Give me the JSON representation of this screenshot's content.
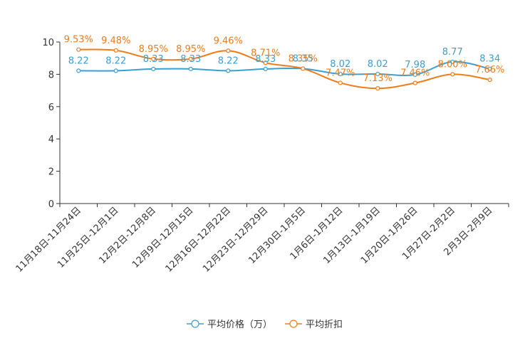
{
  "chart_data": {
    "type": "line",
    "title": "",
    "xlabel": "",
    "ylabel": "",
    "ylim": [
      0,
      10
    ],
    "yticks": [
      0,
      2,
      4,
      6,
      8,
      10
    ],
    "grid": false,
    "legend_position": "bottom-center",
    "categories": [
      "11月18日-11月24日",
      "11月25日-12月1日",
      "12月2日-12月8日",
      "12月9日-12月15日",
      "12月16日-12月22日",
      "12月23日-12月29日",
      "12月30日-1月5日",
      "1月6日-1月12日",
      "1月13日-1月19日",
      "1月20日-1月26日",
      "1月27日-2月2日",
      "2月3日-2月9日"
    ],
    "series": [
      {
        "name": "平均价格（万）",
        "color": "#3b9fd1",
        "values": [
          8.22,
          8.22,
          8.33,
          8.33,
          8.22,
          8.33,
          8.35,
          8.02,
          8.02,
          7.98,
          8.77,
          8.34
        ],
        "labels": [
          "8.22",
          "8.22",
          "8.33",
          "8.33",
          "8.22",
          "8.33",
          "8.35",
          "8.02",
          "8.02",
          "7.98",
          "8.77",
          "8.34"
        ]
      },
      {
        "name": "平均折扣",
        "color": "#f07c19",
        "values": [
          9.53,
          9.48,
          8.95,
          8.95,
          9.46,
          8.71,
          8.35,
          7.47,
          7.13,
          7.46,
          8.0,
          7.66
        ],
        "labels": [
          "9.53%",
          "9.48%",
          "8.95%",
          "8.95%",
          "9.46%",
          "8.71%",
          "8.35%",
          "7.47%",
          "7.13%",
          "7.46%",
          "8.00%",
          "7.66%"
        ]
      }
    ]
  }
}
